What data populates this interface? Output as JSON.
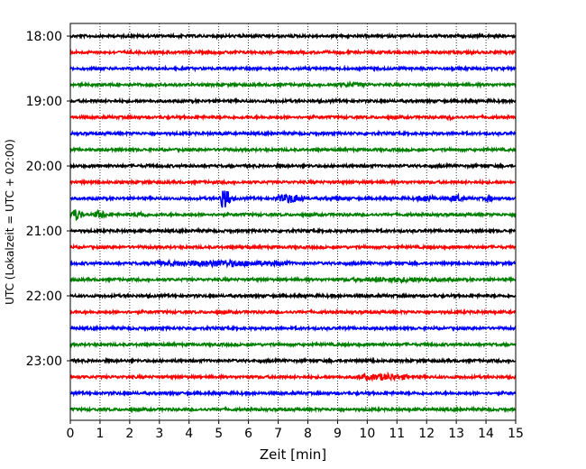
{
  "chart_data": {
    "type": "line",
    "title": "",
    "xlabel": "Zeit  [min]",
    "ylabel": "UTC (Lokalzeit = UTC + 02:00)",
    "xlim": [
      0,
      15
    ],
    "x_ticks": [
      0,
      1,
      2,
      3,
      4,
      5,
      6,
      7,
      8,
      9,
      10,
      11,
      12,
      13,
      14,
      15
    ],
    "y_tick_labels": [
      "18:00",
      "19:00",
      "20:00",
      "21:00",
      "22:00",
      "23:00"
    ],
    "vertical_grid": true,
    "grid_style": "dotted",
    "trace_interval_min": 15,
    "trace_color_cycle": [
      "#000000",
      "#ff0000",
      "#0000ff",
      "#008000"
    ],
    "traces": [
      {
        "start": "18:00",
        "color": "#000000",
        "events": []
      },
      {
        "start": "18:15",
        "color": "#ff0000",
        "events": []
      },
      {
        "start": "18:30",
        "color": "#0000ff",
        "events": []
      },
      {
        "start": "18:45",
        "color": "#008000",
        "events": [
          {
            "t": 9.5,
            "amp": 0.3,
            "dur": 1.5
          }
        ]
      },
      {
        "start": "19:00",
        "color": "#000000",
        "events": []
      },
      {
        "start": "19:15",
        "color": "#ff0000",
        "events": [
          {
            "t": 12.8,
            "amp": 0.3,
            "dur": 0.3
          }
        ]
      },
      {
        "start": "19:30",
        "color": "#0000ff",
        "events": [
          {
            "t": 5.1,
            "amp": 0.3,
            "dur": 0.2
          }
        ]
      },
      {
        "start": "19:45",
        "color": "#008000",
        "events": []
      },
      {
        "start": "20:00",
        "color": "#000000",
        "events": [
          {
            "t": 2.6,
            "amp": 0.25,
            "dur": 0.2
          }
        ]
      },
      {
        "start": "20:15",
        "color": "#ff0000",
        "events": []
      },
      {
        "start": "20:30",
        "color": "#0000ff",
        "events": [
          {
            "t": 5.2,
            "amp": 1.5,
            "dur": 0.4
          },
          {
            "t": 7.4,
            "amp": 0.6,
            "dur": 1.0
          },
          {
            "t": 9.0,
            "amp": 0.3,
            "dur": 1.0
          },
          {
            "t": 12.0,
            "amp": 0.5,
            "dur": 0.6
          },
          {
            "t": 13.0,
            "amp": 0.5,
            "dur": 0.5
          },
          {
            "t": 14.1,
            "amp": 0.5,
            "dur": 0.3
          }
        ]
      },
      {
        "start": "20:45",
        "color": "#008000",
        "events": [
          {
            "t": 0.2,
            "amp": 0.8,
            "dur": 0.4
          },
          {
            "t": 1.0,
            "amp": 0.6,
            "dur": 0.4
          },
          {
            "t": 2.4,
            "amp": 0.4,
            "dur": 0.5
          }
        ]
      },
      {
        "start": "21:00",
        "color": "#000000",
        "events": [
          {
            "t": 2.4,
            "amp": 0.2,
            "dur": 0.3
          }
        ]
      },
      {
        "start": "21:15",
        "color": "#ff0000",
        "events": [
          {
            "t": 5.8,
            "amp": 0.2,
            "dur": 1.4
          }
        ]
      },
      {
        "start": "21:30",
        "color": "#0000ff",
        "events": [
          {
            "t": 5.0,
            "amp": 0.45,
            "dur": 5.0
          }
        ]
      },
      {
        "start": "21:45",
        "color": "#008000",
        "events": [
          {
            "t": 11.0,
            "amp": 0.35,
            "dur": 4.0
          }
        ]
      },
      {
        "start": "22:00",
        "color": "#000000",
        "events": []
      },
      {
        "start": "22:15",
        "color": "#ff0000",
        "events": []
      },
      {
        "start": "22:30",
        "color": "#0000ff",
        "events": []
      },
      {
        "start": "22:45",
        "color": "#008000",
        "events": [
          {
            "t": 2.3,
            "amp": 0.2,
            "dur": 0.4
          },
          {
            "t": 10.6,
            "amp": 0.2,
            "dur": 0.4
          }
        ]
      },
      {
        "start": "23:00",
        "color": "#000000",
        "events": [
          {
            "t": 10.0,
            "amp": 0.2,
            "dur": 2.0
          }
        ]
      },
      {
        "start": "23:15",
        "color": "#ff0000",
        "events": [
          {
            "t": 10.6,
            "amp": 0.45,
            "dur": 2.0
          }
        ]
      },
      {
        "start": "23:30",
        "color": "#0000ff",
        "events": [
          {
            "t": 1.5,
            "amp": 0.2,
            "dur": 0.2
          },
          {
            "t": 5.5,
            "amp": 0.2,
            "dur": 0.2
          }
        ]
      },
      {
        "start": "23:45",
        "color": "#008000",
        "events": [
          {
            "t": 1.2,
            "amp": 0.2,
            "dur": 0.3
          }
        ]
      }
    ]
  }
}
